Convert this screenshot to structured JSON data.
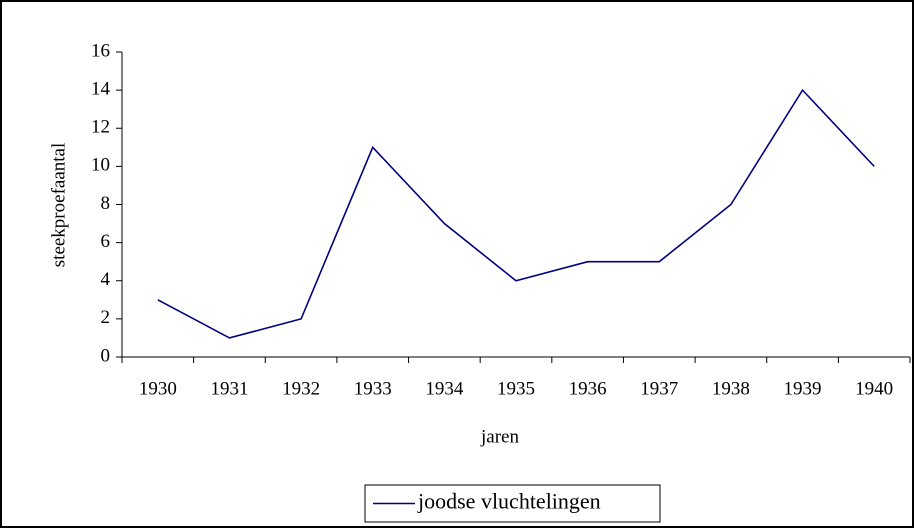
{
  "chart_data": {
    "type": "line",
    "categories": [
      "1930",
      "1931",
      "1932",
      "1933",
      "1934",
      "1935",
      "1936",
      "1937",
      "1938",
      "1939",
      "1940"
    ],
    "series": [
      {
        "name": "joodse vluchtelingen",
        "color": "#000080",
        "values": [
          3,
          1,
          2,
          11,
          7,
          4,
          5,
          5,
          8,
          14,
          10
        ]
      }
    ],
    "xlabel": "jaren",
    "ylabel": "steekproefaantal",
    "ylim": [
      0,
      16
    ],
    "yticks": [
      0,
      2,
      4,
      6,
      8,
      10,
      12,
      14,
      16
    ],
    "grid": false,
    "legend": "bottom"
  }
}
